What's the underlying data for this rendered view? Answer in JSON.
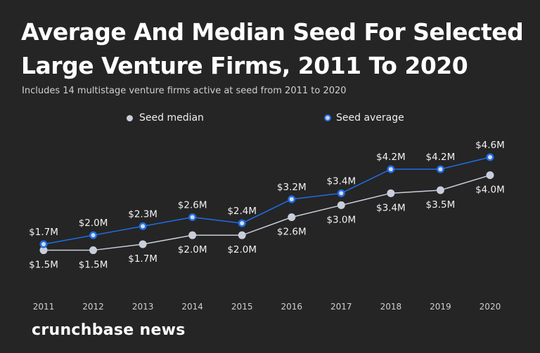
{
  "chart_data": {
    "type": "line",
    "title": "Average And Median Seed For Selected Large Venture Firms, 2011 To 2020",
    "subtitle": "Includes 14 multistage venture firms active at seed from 2011 to 2020",
    "xlabel": "",
    "ylabel": "",
    "x": [
      "2011",
      "2012",
      "2013",
      "2014",
      "2015",
      "2016",
      "2017",
      "2018",
      "2019",
      "2020"
    ],
    "series": [
      {
        "name": "Seed median",
        "color": "#c9cedb",
        "values": [
          1.5,
          1.5,
          1.7,
          2.0,
          2.0,
          2.6,
          3.0,
          3.4,
          3.5,
          4.0
        ],
        "labels": [
          "$1.5M",
          "$1.5M",
          "$1.7M",
          "$2.0M",
          "$2.0M",
          "$2.6M",
          "$3.0M",
          "$3.4M",
          "$3.5M",
          "$4.0M"
        ]
      },
      {
        "name": "Seed average",
        "color": "#1f6ee8",
        "values": [
          1.7,
          2.0,
          2.3,
          2.6,
          2.4,
          3.2,
          3.4,
          4.2,
          4.2,
          4.6
        ],
        "labels": [
          "$1.7M",
          "$2.0M",
          "$2.3M",
          "$2.6M",
          "$2.4M",
          "$3.2M",
          "$3.4M",
          "$4.2M",
          "$4.2M",
          "$4.6M"
        ]
      }
    ],
    "grid": false,
    "legend": "top-center"
  },
  "brand": "crunchbase news"
}
